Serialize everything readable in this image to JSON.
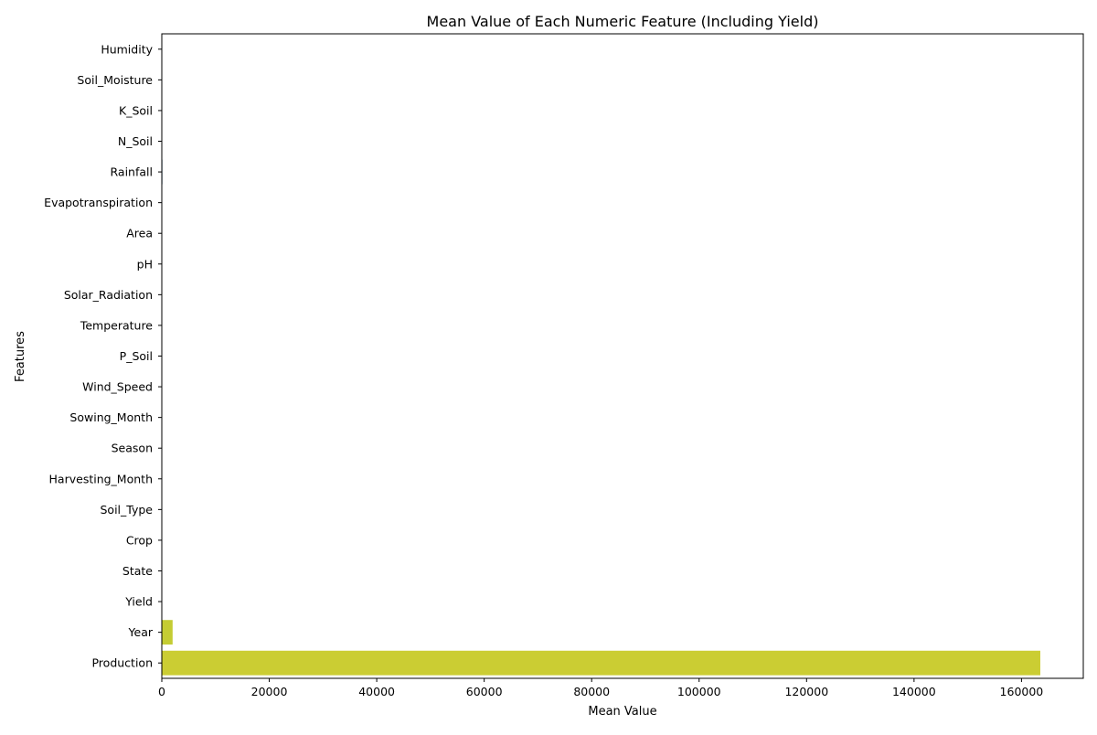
{
  "chart_data": {
    "type": "bar",
    "orientation": "horizontal",
    "title": "Mean Value of Each Numeric Feature (Including Yield)",
    "xlabel": "Mean Value",
    "ylabel": "Features",
    "xlim": [
      0,
      171500
    ],
    "xticks": [
      0,
      20000,
      40000,
      60000,
      80000,
      100000,
      120000,
      140000,
      160000
    ],
    "grid": false,
    "categories": [
      "Humidity",
      "Soil_Moisture",
      "K_Soil",
      "N_Soil",
      "Rainfall",
      "Evapotranspiration",
      "Area",
      "pH",
      "Solar_Radiation",
      "Temperature",
      "P_Soil",
      "Wind_Speed",
      "Sowing_Month",
      "Season",
      "Harvesting_Month",
      "Soil_Type",
      "Crop",
      "State",
      "Yield",
      "Year",
      "Production"
    ],
    "values": [
      60,
      28,
      45,
      80,
      110,
      5,
      75,
      6.5,
      18,
      26,
      40,
      3,
      6,
      2,
      9,
      3,
      5,
      10,
      3,
      2010,
      163500
    ],
    "colors": [
      "#3b0f70",
      "#462a85",
      "#46408e",
      "#3f548d",
      "#38678c",
      "#31778e",
      "#2a878e",
      "#24968c",
      "#21a685",
      "#2eb37c",
      "#46c06f",
      "#66cc5d",
      "#89d548",
      "#addc30",
      "#a7d02c",
      "#b7d02c",
      "#c0cf31",
      "#c7cf33",
      "#bdcf33",
      "#c4cc33",
      "#cbcd33"
    ]
  }
}
